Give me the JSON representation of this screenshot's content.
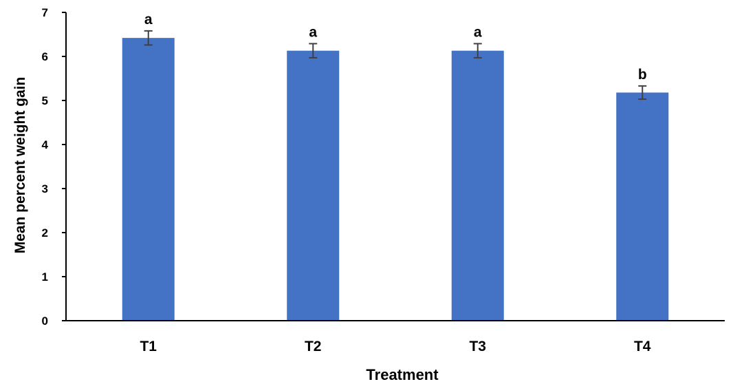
{
  "chart_data": {
    "type": "bar",
    "title": "",
    "xlabel": "Treatment",
    "ylabel": "Mean percent weight gain",
    "categories": [
      "T1",
      "T2",
      "T3",
      "T4"
    ],
    "values": [
      6.42,
      6.13,
      6.13,
      5.18
    ],
    "error": [
      0.16,
      0.16,
      0.16,
      0.15
    ],
    "annotations": [
      "a",
      "a",
      "a",
      "b"
    ],
    "ylim": [
      0,
      7
    ],
    "yticks": [
      0,
      1,
      2,
      3,
      4,
      5,
      6,
      7
    ],
    "grid": false,
    "legend": "none",
    "colors": {
      "bar": "#4472C4",
      "axis": "#000000",
      "error_bar": "#404040"
    }
  }
}
